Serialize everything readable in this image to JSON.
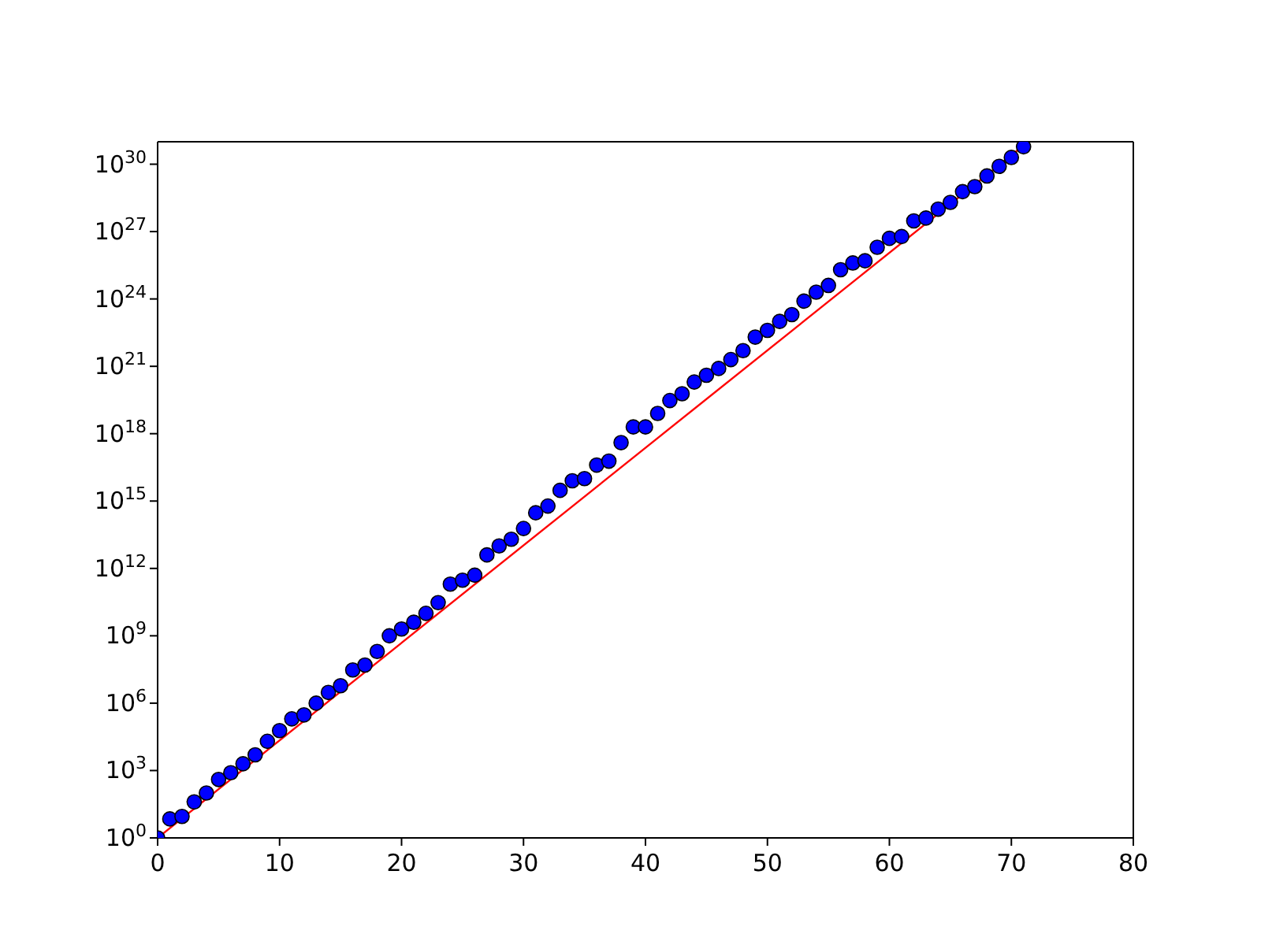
{
  "chart_data": {
    "type": "scatter",
    "log": "y",
    "xlim": [
      0,
      80
    ],
    "xticks": [
      0,
      10,
      20,
      30,
      40,
      50,
      60,
      70,
      80
    ],
    "ylim": [
      1,
      1e+31
    ],
    "yticks": [
      {
        "value": 1,
        "label": "10$^{0}$"
      },
      {
        "value": 1000.0,
        "label": "10$^{3}$"
      },
      {
        "value": 1000000.0,
        "label": "10$^{6}$"
      },
      {
        "value": 1000000000.0,
        "label": "10$^{9}$"
      },
      {
        "value": 1000000000000.0,
        "label": "10$^{12}$"
      },
      {
        "value": 1000000000000000.0,
        "label": "10$^{15}$"
      },
      {
        "value": 1e+18,
        "label": "10$^{18}$"
      },
      {
        "value": 1e+21,
        "label": "10$^{21}$"
      },
      {
        "value": 1e+24,
        "label": "10$^{24}$"
      },
      {
        "value": 1e+27,
        "label": "10$^{27}$"
      },
      {
        "value": 1e+30,
        "label": "10$^{30}$"
      }
    ],
    "series": [
      {
        "marker": "circle",
        "color": "#0000ff",
        "x": [
          0,
          1,
          2,
          3,
          4,
          5,
          6,
          7,
          8,
          9,
          10,
          11,
          12,
          13,
          14,
          15,
          16,
          17,
          18,
          19,
          20,
          21,
          22,
          23,
          24,
          25,
          26,
          27,
          28,
          29,
          30,
          31,
          32,
          33,
          34,
          35,
          36,
          37,
          38,
          39,
          40,
          41,
          42,
          43,
          44,
          45,
          46,
          47,
          48,
          49,
          50,
          51,
          52,
          53,
          54,
          55,
          56,
          57,
          58,
          59,
          60,
          61,
          62,
          63,
          64,
          65,
          66,
          67,
          68,
          69,
          70,
          71
        ],
        "values": [
          1,
          7,
          9,
          40,
          100,
          400,
          800,
          2000,
          5000,
          20000.0,
          60000.0,
          200000.0,
          300000.0,
          1000000.0,
          3000000.0,
          6000000.0,
          30000000.0,
          50000000.0,
          200000000.0,
          1000000000.0,
          2000000000.0,
          4000000000.0,
          10000000000.0,
          30000000000.0,
          200000000000.0,
          300000000000.0,
          500000000000.0,
          4000000000000.0,
          10000000000000.0,
          20000000000000.0,
          60000000000000.0,
          300000000000000.0,
          600000000000000.0,
          3000000000000000.0,
          8000000000000000.0,
          1e+16,
          4e+16,
          6e+16,
          4e+17,
          2e+18,
          2e+18,
          8e+18,
          3e+19,
          6e+19,
          2e+20,
          4e+20,
          8e+20,
          2e+21,
          5e+21,
          2e+22,
          4e+22,
          1e+23,
          2e+23,
          8e+23,
          2e+24,
          4e+24,
          2e+25,
          4e+25,
          5e+25,
          2e+26,
          5e+26,
          6e+26,
          3e+27,
          4e+27,
          1e+28,
          2e+28,
          6e+28,
          1e+29,
          3e+29,
          8e+29,
          2e+30,
          6e+30
        ]
      },
      {
        "type": "line",
        "marker": "none",
        "line_style": "solid",
        "color": "#ff0000",
        "x": [
          0,
          71
        ],
        "values": [
          1,
          6.8e+30
        ]
      }
    ]
  }
}
